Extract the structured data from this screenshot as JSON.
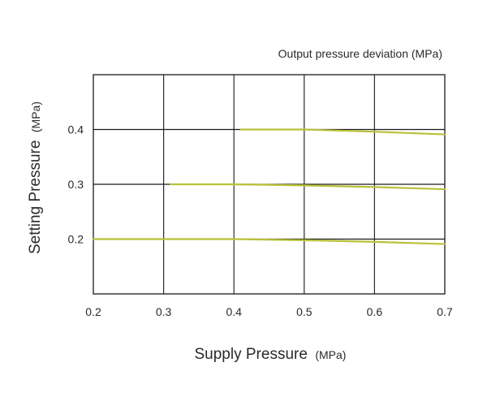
{
  "chart_data": {
    "type": "line",
    "title": "Output pressure deviation (MPa)",
    "xlabel": {
      "main": "Supply Pressure",
      "unit": "(MPa)"
    },
    "ylabel": {
      "main": "Setting Pressure",
      "unit": "(MPa)"
    },
    "xlim": [
      0.2,
      0.7
    ],
    "ylim": [
      0.1,
      0.5
    ],
    "x_ticks": [
      0.2,
      0.3,
      0.4,
      0.5,
      0.6,
      0.7
    ],
    "x_tick_labels": [
      "0.2",
      "0.3",
      "0.4",
      "0.5",
      "0.6",
      "0.7"
    ],
    "y_ticks": [
      0.2,
      0.3,
      0.4
    ],
    "y_tick_labels": [
      "0.2",
      "0.3",
      "0.4"
    ],
    "grid": true,
    "reference_lines": [
      {
        "y": 0.2,
        "x_range": [
          0.2,
          0.7
        ]
      },
      {
        "y": 0.3,
        "x_range": [
          0.2,
          0.7
        ]
      },
      {
        "y": 0.4,
        "x_range": [
          0.2,
          0.7
        ]
      }
    ],
    "series": [
      {
        "x": [
          0.2,
          0.4,
          0.5,
          0.6,
          0.7
        ],
        "values": [
          0.2,
          0.2,
          0.198,
          0.195,
          0.191
        ]
      },
      {
        "x": [
          0.31,
          0.4,
          0.5,
          0.6,
          0.7
        ],
        "values": [
          0.3,
          0.3,
          0.298,
          0.295,
          0.291
        ]
      },
      {
        "x": [
          0.41,
          0.5,
          0.6,
          0.7
        ],
        "values": [
          0.4,
          0.4,
          0.396,
          0.391
        ]
      }
    ],
    "colors": {
      "series": "#b8c23a",
      "reference": "#1a1a1a",
      "grid": "#2a2a2a",
      "text": "#2a2a2a"
    }
  }
}
